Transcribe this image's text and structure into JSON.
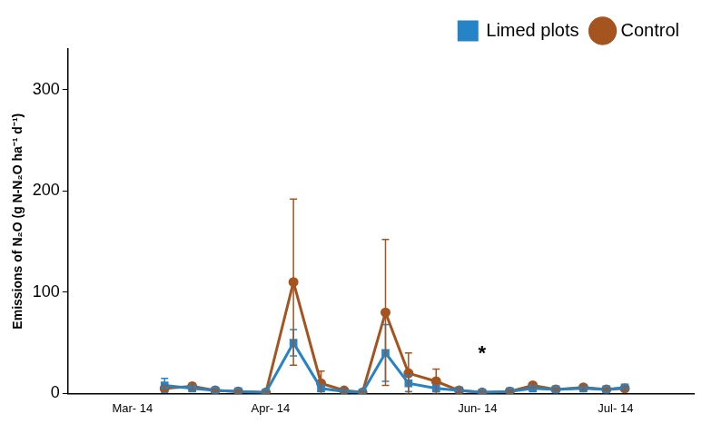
{
  "chart_data": {
    "type": "line",
    "y_label": "Emissions of N₂O (g N-N₂O ha⁻¹ d⁻¹)",
    "x": [
      7,
      13,
      18,
      23,
      29,
      35,
      41,
      46,
      50,
      55,
      60,
      66,
      71,
      76,
      82,
      87,
      92,
      98,
      103,
      107
    ],
    "xlim": [
      -14,
      122
    ],
    "xticks": [
      {
        "value": 0,
        "label": "Mar- 14"
      },
      {
        "value": 30,
        "label": "Apr- 14"
      },
      {
        "value": 75,
        "label": "Jun- 14"
      },
      {
        "value": 105,
        "label": "Jul- 14"
      }
    ],
    "ylim": [
      0,
      340
    ],
    "yticks": [
      0,
      100,
      200,
      300
    ],
    "grid": false,
    "legend": "top right",
    "series": [
      {
        "name": "Limed plots",
        "color": "#2583c6",
        "marker": "square",
        "values": [
          8,
          5,
          3,
          2,
          1,
          50,
          5,
          2,
          1,
          40,
          10,
          5,
          3,
          1,
          2,
          5,
          4,
          5,
          4,
          6
        ],
        "errors": [
          7,
          2,
          1,
          1,
          1,
          13,
          3,
          1,
          1,
          28,
          8,
          3,
          1,
          1,
          1,
          2,
          1,
          1,
          1,
          2
        ]
      },
      {
        "name": "Control",
        "color": "#a5531f",
        "marker": "circle",
        "values": [
          5,
          7,
          3,
          2,
          1,
          110,
          10,
          3,
          1,
          80,
          20,
          12,
          3,
          1,
          2,
          8,
          4,
          6,
          4,
          5
        ],
        "errors": [
          3,
          3,
          1,
          1,
          1,
          82,
          12,
          2,
          1,
          72,
          20,
          12,
          2,
          1,
          1,
          2,
          1,
          2,
          1,
          2
        ]
      }
    ],
    "annotations": [
      {
        "text": "*",
        "x": 76,
        "y": 39
      }
    ]
  }
}
